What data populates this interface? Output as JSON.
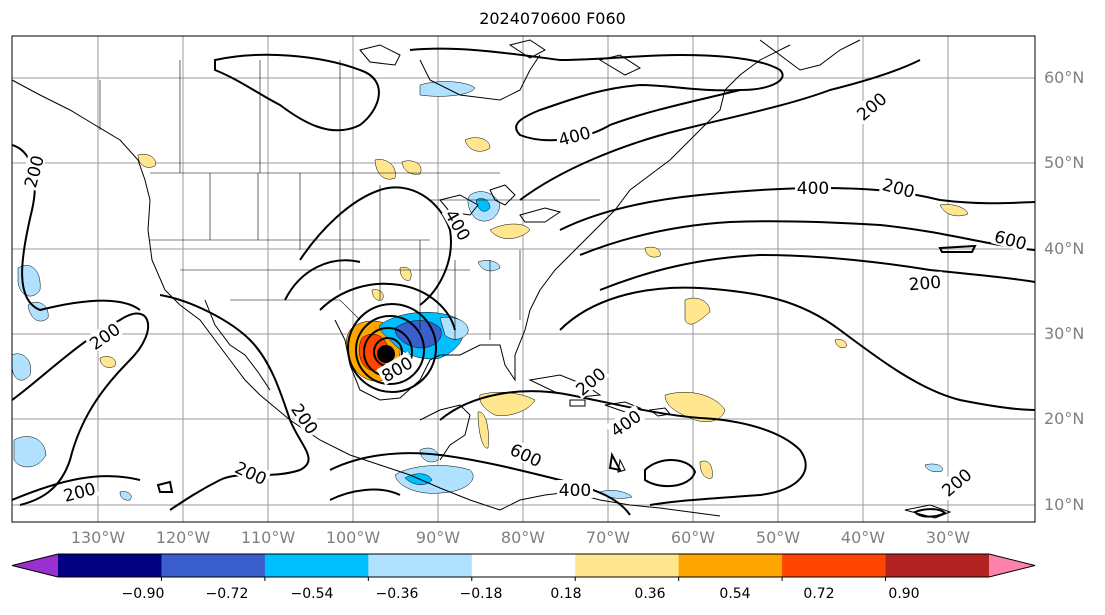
{
  "title": "2024070600 F060",
  "lat_labels": [
    "60°N",
    "50°N",
    "40°N",
    "30°N",
    "20°N",
    "10°N"
  ],
  "lon_labels": [
    "130°W",
    "120°W",
    "110°W",
    "100°W",
    "90°W",
    "80°W",
    "70°W",
    "60°W",
    "50°W",
    "40°W",
    "30°W"
  ],
  "contour_labels": [
    {
      "text": "200"
    },
    {
      "text": "200"
    },
    {
      "text": "200"
    },
    {
      "text": "200"
    },
    {
      "text": "200"
    },
    {
      "text": "200"
    },
    {
      "text": "200"
    },
    {
      "text": "200"
    },
    {
      "text": "200"
    },
    {
      "text": "200"
    },
    {
      "text": "400"
    },
    {
      "text": "400"
    },
    {
      "text": "400"
    },
    {
      "text": "600"
    },
    {
      "text": "600"
    },
    {
      "text": "400"
    },
    {
      "text": "800"
    },
    {
      "text": "400"
    }
  ],
  "colorbar": {
    "colors": [
      "#9b30d0",
      "#000080",
      "#3a5fcd",
      "#00bfff",
      "#b0e2ff",
      "#ffffff",
      "#ffe68f",
      "#ffa500",
      "#ff4500",
      "#b22222",
      "#ff82ab"
    ],
    "ticks": [
      "−0.90",
      "−0.72",
      "−0.54",
      "−0.36",
      "−0.18",
      "0.18",
      "0.36",
      "0.54",
      "0.72",
      "0.90"
    ]
  },
  "colors": {
    "contour": "#000000",
    "grid": "#999999",
    "axis_label": "#808080"
  }
}
